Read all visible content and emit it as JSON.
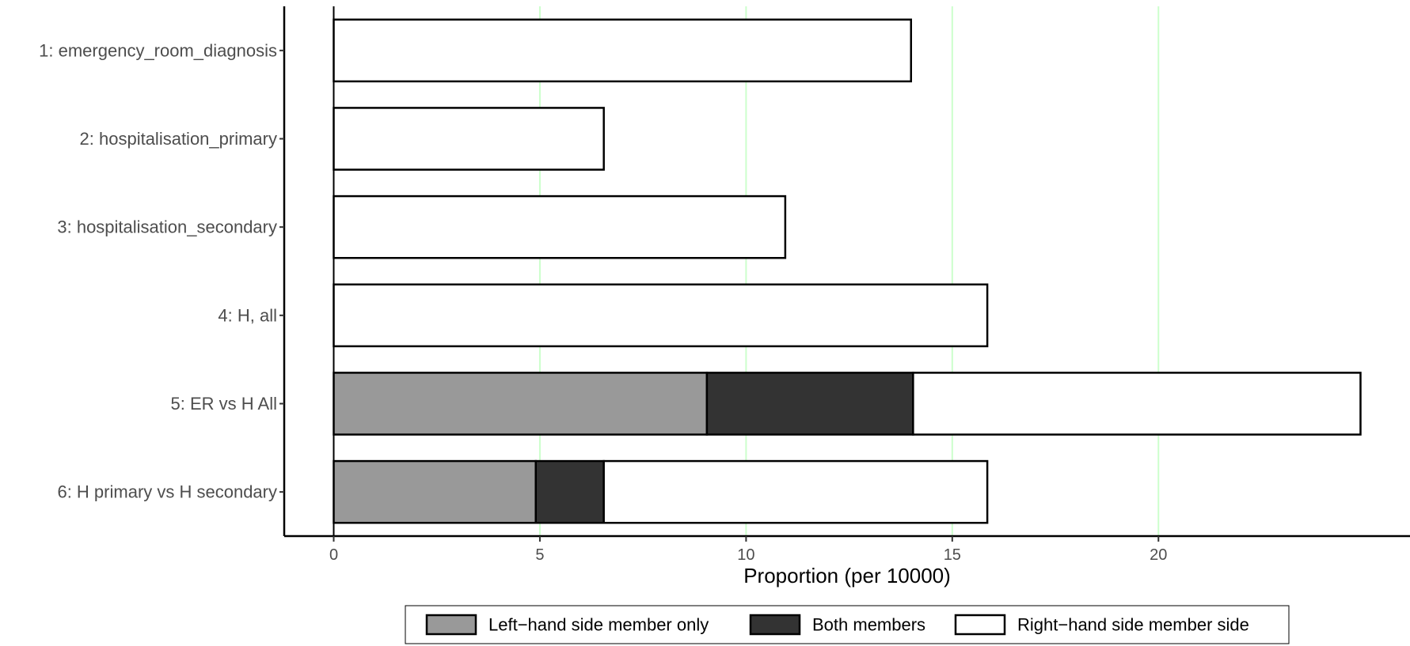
{
  "chart_data": {
    "type": "bar",
    "orientation": "horizontal",
    "stacked": true,
    "title": "",
    "xlabel": "Proportion (per 10000)",
    "ylabel": "",
    "categories": [
      "1: emergency_room_diagnosis",
      "2: hospitalisation_primary",
      "3: hospitalisation_secondary",
      "4: H, all",
      "5: ER  vs H All",
      "6: H primary vs H secondary"
    ],
    "series": [
      {
        "name": "Left−hand side member only",
        "color": "#999999",
        "values": [
          0,
          0,
          0,
          0,
          9.05,
          4.9
        ]
      },
      {
        "name": "Both members",
        "color": "#333333",
        "values": [
          0,
          0,
          0,
          0,
          5.0,
          1.65
        ]
      },
      {
        "name": "Right−hand side member side",
        "color": "#ffffff",
        "values": [
          14.0,
          6.55,
          10.95,
          15.85,
          10.85,
          9.3
        ]
      }
    ],
    "xlim": [
      -1.2,
      26.1
    ],
    "xticks": [
      0,
      5,
      10,
      15,
      20
    ],
    "xtick_labels": [
      "0",
      "5",
      "10",
      "15",
      "20"
    ],
    "grid": {
      "major_x": true,
      "color": "#ccffcc"
    },
    "legend": "bottom"
  }
}
